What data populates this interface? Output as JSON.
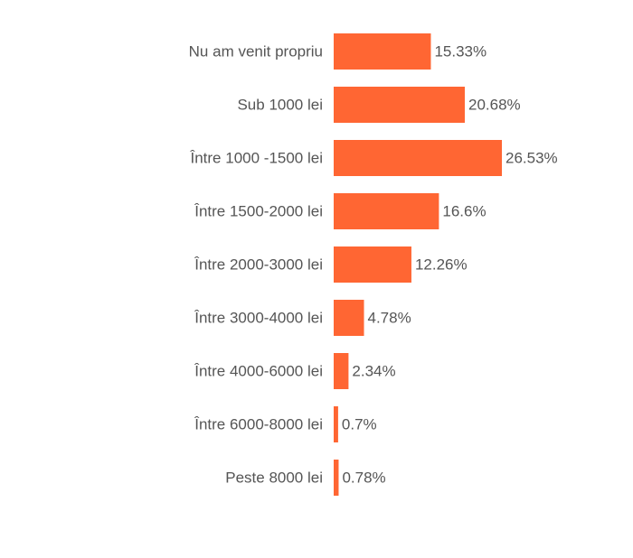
{
  "chart_data": {
    "type": "bar",
    "orientation": "horizontal",
    "categories": [
      "Nu am venit propriu",
      "Sub 1000 lei",
      "Între 1000 -1500 lei",
      "Între 1500-2000 lei",
      "Între 2000-3000 lei",
      "Între 3000-4000 lei",
      "Între 4000-6000 lei",
      "Între 6000-8000 lei",
      "Peste 8000 lei"
    ],
    "values": [
      15.33,
      20.68,
      26.53,
      16.6,
      12.26,
      4.78,
      2.34,
      0.7,
      0.78
    ],
    "data_labels": [
      "15.33%",
      "20.68%",
      "26.53%",
      "16.6%",
      "12.26%",
      "4.78%",
      "2.34%",
      "0.7%",
      "0.78%"
    ],
    "title": "",
    "xlabel": "",
    "ylabel": "",
    "xlim": [
      0,
      26.53
    ],
    "grid": false,
    "legend": "none",
    "bar_color": "#ff6633",
    "label_color": "#555555"
  }
}
